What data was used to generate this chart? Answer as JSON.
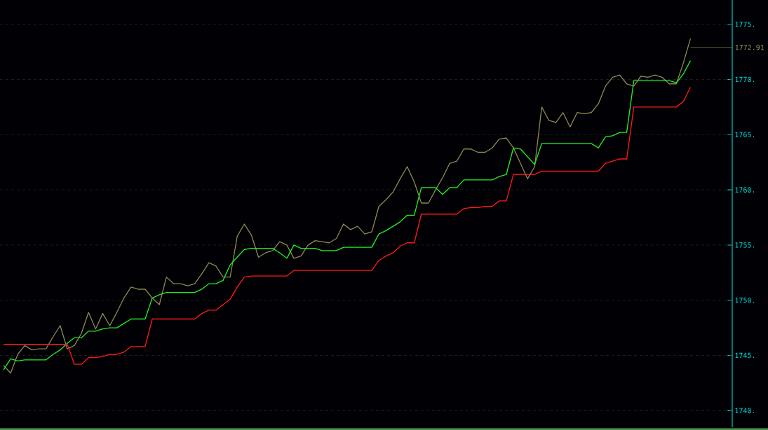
{
  "chart_data": {
    "type": "line",
    "categories": [
      null,
      null,
      null,
      null,
      null,
      null,
      null,
      null,
      null,
      null,
      null,
      null,
      null,
      null,
      null,
      null,
      null,
      null,
      null,
      null,
      null,
      null,
      null,
      null,
      null,
      null,
      null,
      null,
      null,
      null,
      null,
      null,
      null,
      null,
      null,
      null,
      null,
      null,
      null,
      null,
      null,
      null,
      null,
      null,
      null,
      null,
      null,
      null,
      null,
      null,
      null,
      null,
      null,
      null,
      null,
      null,
      null,
      null,
      null,
      null,
      null,
      null,
      null,
      null,
      null,
      null,
      null,
      null,
      null,
      null,
      null,
      null,
      null,
      null,
      null,
      null,
      null,
      null,
      null,
      null,
      null,
      null,
      null,
      null,
      null,
      null,
      null,
      null,
      null,
      null,
      null,
      null,
      null,
      null,
      null,
      null,
      null,
      null
    ],
    "series": [
      {
        "type": "line",
        "color": "#8c8752",
        "values": [
          1744.1,
          1743.4,
          1745.1,
          1745.9,
          1745.5,
          1745.6,
          1745.6,
          1746.7,
          1747.7,
          1745.6,
          1745.9,
          1747.0,
          1748.9,
          1747.4,
          1748.8,
          1747.7,
          1748.9,
          1750.2,
          1751.2,
          1751.0,
          1751.0,
          1750.2,
          1749.6,
          1752.1,
          1751.5,
          1751.5,
          1751.3,
          1751.5,
          1752.4,
          1753.4,
          1753.1,
          1752.1,
          1752.1,
          1755.8,
          1756.9,
          1755.9,
          1753.9,
          1754.3,
          1754.5,
          1755.3,
          1755.0,
          1753.8,
          1754.0,
          1755.0,
          1755.4,
          1755.3,
          1755.2,
          1755.6,
          1756.9,
          1756.4,
          1756.7,
          1756.0,
          1756.2,
          1758.5,
          1759.1,
          1759.8,
          1761.0,
          1762.1,
          1760.7,
          1758.8,
          1758.8,
          1760.0,
          1761.1,
          1762.4,
          1762.6,
          1763.7,
          1763.7,
          1763.4,
          1763.4,
          1763.8,
          1764.6,
          1764.7,
          1763.8,
          1762.4,
          1761.0,
          1762.1,
          1767.5,
          1766.3,
          1766.1,
          1767.0,
          1765.7,
          1767.0,
          1766.9,
          1767.0,
          1767.8,
          1769.4,
          1770.2,
          1770.4,
          1769.6,
          1769.4,
          1770.3,
          1770.2,
          1770.4,
          1770.2,
          1769.6,
          1769.6,
          1771.5,
          1773.7
        ]
      },
      {
        "type": "line",
        "color": "#22ee22",
        "values": [
          1743.7,
          1744.7,
          1744.5,
          1744.6,
          1744.6,
          1744.6,
          1744.6,
          1745.1,
          1745.5,
          1746.1,
          1746.6,
          1746.6,
          1747.2,
          1747.2,
          1747.4,
          1747.5,
          1747.5,
          1747.9,
          1748.3,
          1748.3,
          1748.3,
          1750.2,
          1750.5,
          1750.7,
          1750.7,
          1750.7,
          1750.7,
          1750.7,
          1751.0,
          1751.5,
          1751.5,
          1751.8,
          1753.2,
          1753.9,
          1754.6,
          1754.7,
          1754.7,
          1754.7,
          1754.7,
          1754.3,
          1753.8,
          1755.0,
          1754.7,
          1754.7,
          1754.7,
          1754.5,
          1754.5,
          1754.5,
          1754.8,
          1754.8,
          1754.8,
          1754.8,
          1754.8,
          1756.0,
          1756.3,
          1756.7,
          1757.1,
          1757.7,
          1757.7,
          1760.2,
          1760.2,
          1760.2,
          1759.6,
          1760.2,
          1760.2,
          1760.9,
          1760.9,
          1760.9,
          1760.9,
          1760.9,
          1761.2,
          1761.4,
          1763.8,
          1763.7,
          1763.0,
          1762.3,
          1764.2,
          1764.2,
          1764.2,
          1764.2,
          1764.2,
          1764.2,
          1764.2,
          1764.2,
          1763.8,
          1764.8,
          1764.9,
          1765.2,
          1765.2,
          1769.9,
          1769.9,
          1769.9,
          1769.9,
          1769.9,
          1769.9,
          1769.7,
          1770.5,
          1771.7
        ]
      },
      {
        "type": "line",
        "color": "#ff1a1a",
        "values": [
          1746.0,
          1746.0,
          1746.0,
          1746.0,
          1746.0,
          1746.0,
          1746.0,
          1746.0,
          1746.0,
          1746.0,
          1744.2,
          1744.2,
          1744.8,
          1744.8,
          1744.9,
          1745.1,
          1745.1,
          1745.3,
          1745.8,
          1745.8,
          1745.8,
          1748.3,
          1748.3,
          1748.3,
          1748.3,
          1748.3,
          1748.3,
          1748.3,
          1748.8,
          1749.1,
          1749.1,
          1749.6,
          1750.1,
          1751.2,
          1752.1,
          1752.2,
          1752.2,
          1752.2,
          1752.2,
          1752.2,
          1752.2,
          1752.7,
          1752.7,
          1752.7,
          1752.7,
          1752.7,
          1752.7,
          1752.7,
          1752.7,
          1752.7,
          1752.7,
          1752.7,
          1752.7,
          1753.6,
          1754.0,
          1754.3,
          1754.9,
          1755.2,
          1755.2,
          1757.8,
          1757.8,
          1757.8,
          1757.8,
          1757.8,
          1757.8,
          1758.3,
          1758.4,
          1758.4,
          1758.5,
          1758.5,
          1759.0,
          1759.0,
          1761.4,
          1761.4,
          1761.4,
          1761.4,
          1761.7,
          1761.7,
          1761.7,
          1761.7,
          1761.7,
          1761.7,
          1761.7,
          1761.7,
          1761.7,
          1762.4,
          1762.6,
          1762.8,
          1762.8,
          1767.5,
          1767.5,
          1767.5,
          1767.5,
          1767.5,
          1767.5,
          1767.5,
          1768.0,
          1769.3
        ]
      }
    ],
    "ylim": [
      1738.5,
      1777.2
    ],
    "yticks": [
      {
        "value": 1740,
        "label": "1740."
      },
      {
        "value": 1745,
        "label": "1745."
      },
      {
        "value": 1750,
        "label": "1750."
      },
      {
        "value": 1755,
        "label": "1755."
      },
      {
        "value": 1760,
        "label": "1760."
      },
      {
        "value": 1765,
        "label": "1765."
      },
      {
        "value": 1770,
        "label": "1770."
      },
      {
        "value": 1775,
        "label": "1775."
      }
    ],
    "ref_lines": [
      {
        "axis": "y",
        "value": 1772.91,
        "label": "1772.91",
        "color": "#9a9460"
      }
    ],
    "grid": "y",
    "tick_labels": "y",
    "line_style": "solid"
  }
}
